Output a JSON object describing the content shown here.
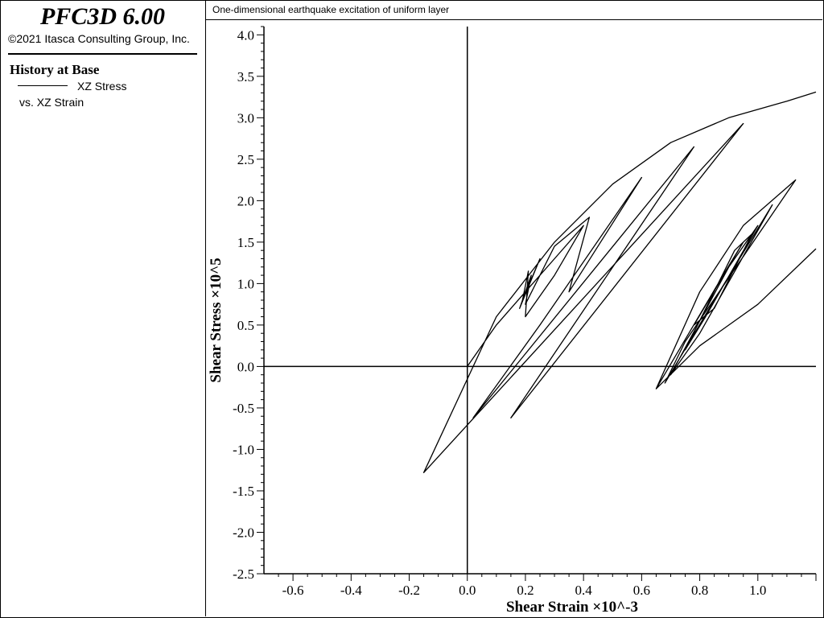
{
  "sidebar": {
    "app_title": "PFC3D 6.00",
    "copyright": "©2021 Itasca Consulting Group, Inc.",
    "legend_title": "History at Base",
    "legend_series": "XZ Stress",
    "legend_sub": "vs. XZ Strain"
  },
  "plot_title": "One-dimensional earthquake excitation of uniform layer",
  "chart_data": {
    "type": "line",
    "title": "One-dimensional earthquake excitation of uniform layer",
    "xlabel": "Shear Strain ×10^-3",
    "ylabel": "Shear Stress ×10^5",
    "xlim": [
      -0.7,
      1.2
    ],
    "ylim": [
      -2.5,
      4.1
    ],
    "x_ticks": [
      "-0.6",
      "-0.4",
      "-0.2",
      "0.0",
      "0.2",
      "0.4",
      "0.6",
      "0.8",
      "1.0"
    ],
    "x_tick_values": [
      -0.6,
      -0.4,
      -0.2,
      0.0,
      0.2,
      0.4,
      0.6,
      0.8,
      1.0
    ],
    "y_ticks": [
      "4.0",
      "3.5",
      "3.0",
      "2.5",
      "2.0",
      "1.5",
      "1.0",
      "0.5",
      "0.0",
      "-0.5",
      "-1.0",
      "-1.5",
      "-2.0",
      "-2.5"
    ],
    "y_tick_values": [
      4.0,
      3.5,
      3.0,
      2.5,
      2.0,
      1.5,
      1.0,
      0.5,
      0.0,
      -0.5,
      -1.0,
      -1.5,
      -2.0,
      -2.5
    ],
    "line_color": "#000000",
    "series": [
      {
        "name": "XZ Stress",
        "x": [
          0.0,
          0.1,
          0.2,
          0.3,
          0.4,
          0.3,
          0.2,
          0.21,
          0.19,
          0.25,
          0.18,
          0.22,
          0.2,
          0.3,
          0.42,
          0.35,
          0.6,
          0.25,
          0.02,
          0.78,
          0.15,
          0.95,
          -0.15,
          0.1,
          0.3,
          0.5,
          0.7,
          0.9,
          1.1,
          1.2
        ],
        "y": [
          0.0,
          0.5,
          0.9,
          1.3,
          1.7,
          1.1,
          0.6,
          1.15,
          0.8,
          1.3,
          0.7,
          1.1,
          0.75,
          1.45,
          1.8,
          0.9,
          2.28,
          0.5,
          -0.62,
          2.65,
          -0.62,
          2.93,
          -1.28,
          0.6,
          1.5,
          2.2,
          2.7,
          3.0,
          3.2,
          3.31
        ]
      },
      {
        "name": "XZ Stress",
        "x": [
          0.65,
          0.8,
          0.95,
          1.13,
          0.75,
          0.68,
          0.85,
          1.05,
          0.8,
          0.7,
          0.9,
          1.0,
          0.82,
          0.75,
          0.92,
          0.98,
          0.85,
          0.78,
          0.95,
          0.88,
          0.65,
          0.8,
          1.0,
          1.2
        ],
        "y": [
          -0.27,
          0.9,
          1.7,
          2.25,
          0.3,
          -0.2,
          0.8,
          1.95,
          0.4,
          -0.1,
          1.2,
          1.7,
          0.6,
          0.2,
          1.4,
          1.6,
          0.7,
          0.5,
          1.5,
          1.1,
          -0.27,
          0.25,
          0.75,
          1.42
        ]
      }
    ],
    "grid": false,
    "legend_position": "left-panel"
  }
}
